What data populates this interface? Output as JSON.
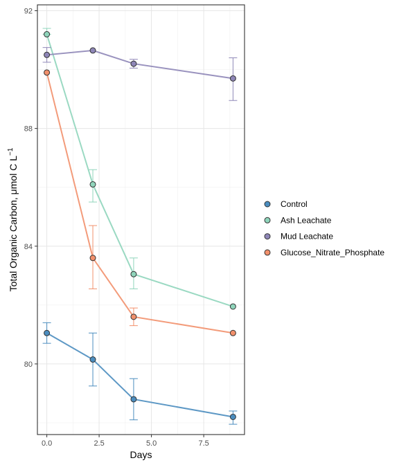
{
  "chart_data": {
    "type": "line",
    "xlabel": "Days",
    "ylabel_main": "Total Organic Carbon, μmol C L",
    "ylabel_sup": "−1",
    "xlim": [
      -0.45,
      9.45
    ],
    "ylim": [
      77.6,
      92.2
    ],
    "x_ticks": [
      0,
      2.5,
      5,
      7.5
    ],
    "x_tick_labels": [
      "0.0",
      "2.5",
      "5.0",
      "7.5"
    ],
    "y_ticks": [
      80,
      84,
      88,
      92
    ],
    "y_tick_labels": [
      "80",
      "84",
      "88",
      "92"
    ],
    "grid": true,
    "legend_position": "right",
    "x": [
      0,
      2.2,
      4.15,
      8.9
    ],
    "series": [
      {
        "name": "Control",
        "color": "#4B8DBF",
        "values": [
          81.05,
          80.15,
          78.8,
          78.2
        ],
        "err_low": [
          80.7,
          79.25,
          78.1,
          77.95
        ],
        "err_high": [
          81.4,
          81.05,
          79.5,
          78.4
        ]
      },
      {
        "name": "Ash Leachate",
        "color": "#8FD5BB",
        "values": [
          91.2,
          86.1,
          83.05,
          81.95
        ],
        "err_low": [
          91.2,
          85.5,
          82.55,
          81.95
        ],
        "err_high": [
          91.4,
          86.6,
          83.6,
          81.95
        ]
      },
      {
        "name": "Mud Leachate",
        "color": "#8E86B7",
        "values": [
          90.5,
          90.65,
          90.2,
          89.7
        ],
        "err_low": [
          90.25,
          90.65,
          90.05,
          88.95
        ],
        "err_high": [
          90.75,
          90.65,
          90.35,
          90.4
        ]
      },
      {
        "name": "Glucose_Nitrate_Phosphate",
        "color": "#F2906C",
        "values": [
          89.9,
          83.6,
          81.6,
          81.05
        ],
        "err_low": [
          89.9,
          82.55,
          81.3,
          81.05
        ],
        "err_high": [
          89.9,
          84.7,
          81.9,
          81.05
        ]
      }
    ]
  }
}
